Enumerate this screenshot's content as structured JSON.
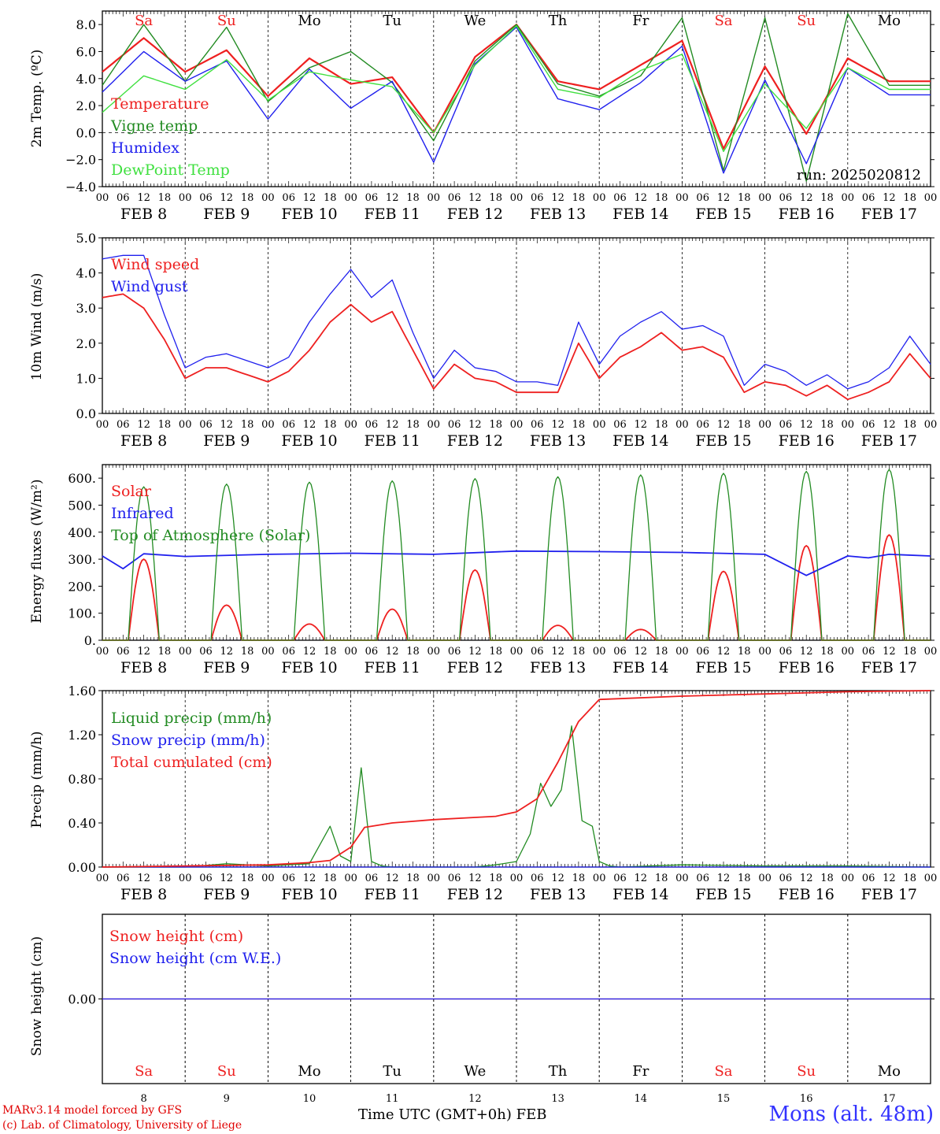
{
  "chart_data": [
    {
      "type": "line",
      "ylabel": "2m Temp. (ºC)",
      "ylim": [
        -4,
        9
      ],
      "yticks": [
        "8.0",
        "6.0",
        "4.0",
        "2.0",
        "0.0",
        "−2.0",
        "−4.0"
      ],
      "ytick_values": [
        8,
        6,
        4,
        2,
        0,
        -2,
        -4
      ],
      "zero_line": 0,
      "annotation": "run: 2025020812",
      "x_hours": [
        0,
        12,
        24,
        36,
        48,
        60,
        72,
        84,
        96,
        108,
        120,
        132,
        144,
        156,
        168,
        180,
        192,
        204,
        216,
        228,
        240
      ],
      "series": [
        {
          "name": "Temperature",
          "color": "#ee2020",
          "width": 2.2,
          "values": [
            4.5,
            7.0,
            4.5,
            6.1,
            2.7,
            5.5,
            3.6,
            4.1,
            0.0,
            5.6,
            8.0,
            3.8,
            3.2,
            5.0,
            6.8,
            -1.2,
            4.9,
            -0.1,
            5.5,
            3.8,
            3.8
          ]
        },
        {
          "name": "Vigne temp",
          "color": "#228b22",
          "width": 1.4,
          "values": [
            3.5,
            8.0,
            3.8,
            7.8,
            2.3,
            4.8,
            6.0,
            3.7,
            -0.6,
            5.3,
            8.0,
            3.6,
            2.7,
            4.2,
            8.5,
            -2.8,
            8.5,
            -3.6,
            8.8,
            3.5,
            3.5
          ]
        },
        {
          "name": "Humidex",
          "color": "#2020ee",
          "width": 1.4,
          "values": [
            3.0,
            6.0,
            3.8,
            5.3,
            1.0,
            4.7,
            1.8,
            3.8,
            -2.2,
            5.1,
            7.8,
            2.5,
            1.7,
            3.7,
            6.4,
            -3.0,
            3.9,
            -2.3,
            4.8,
            2.8,
            2.8
          ]
        },
        {
          "name": "DewPoint Temp",
          "color": "#40e040",
          "width": 1.4,
          "values": [
            1.5,
            4.2,
            3.2,
            5.4,
            2.4,
            4.5,
            3.9,
            3.4,
            0.0,
            5.0,
            7.9,
            3.2,
            2.6,
            4.6,
            5.8,
            -1.4,
            3.6,
            0.3,
            4.8,
            3.2,
            3.2
          ]
        }
      ]
    },
    {
      "type": "line",
      "ylabel": "10m Wind (m/s)",
      "ylim": [
        0,
        5
      ],
      "yticks": [
        "5.0",
        "4.0",
        "3.0",
        "2.0",
        "1.0",
        "0.0"
      ],
      "ytick_values": [
        5,
        4,
        3,
        2,
        1,
        0
      ],
      "x_hours": [
        0,
        6,
        12,
        18,
        24,
        30,
        36,
        42,
        48,
        54,
        60,
        66,
        72,
        78,
        84,
        90,
        96,
        102,
        108,
        114,
        120,
        126,
        132,
        138,
        144,
        150,
        156,
        162,
        168,
        174,
        180,
        186,
        192,
        198,
        204,
        210,
        216,
        222,
        228,
        234,
        240
      ],
      "series": [
        {
          "name": "Wind speed",
          "color": "#ee2020",
          "width": 1.8,
          "values": [
            3.3,
            3.4,
            3.0,
            2.1,
            1.0,
            1.3,
            1.3,
            1.1,
            0.9,
            1.2,
            1.8,
            2.6,
            3.1,
            2.6,
            2.9,
            1.8,
            0.7,
            1.4,
            1.0,
            0.9,
            0.6,
            0.6,
            0.6,
            2.0,
            1.0,
            1.6,
            1.9,
            2.3,
            1.8,
            1.9,
            1.6,
            0.6,
            0.9,
            0.8,
            0.5,
            0.8,
            0.4,
            0.6,
            0.9,
            1.7,
            1.0
          ]
        },
        {
          "name": "Wind gust",
          "color": "#2020ee",
          "width": 1.3,
          "values": [
            4.4,
            4.5,
            4.5,
            2.8,
            1.3,
            1.6,
            1.7,
            1.5,
            1.3,
            1.6,
            2.6,
            3.4,
            4.1,
            3.3,
            3.8,
            2.3,
            1.0,
            1.8,
            1.3,
            1.2,
            0.9,
            0.9,
            0.8,
            2.6,
            1.4,
            2.2,
            2.6,
            2.9,
            2.4,
            2.5,
            2.2,
            0.8,
            1.4,
            1.2,
            0.8,
            1.1,
            0.7,
            0.9,
            1.3,
            2.2,
            1.4
          ]
        }
      ]
    },
    {
      "type": "line",
      "ylabel": "Energy fluxes (W/m²)",
      "ylim": [
        0,
        650
      ],
      "yticks": [
        "600.",
        "500.",
        "400.",
        "300.",
        "200.",
        "100.",
        "0."
      ],
      "ytick_values": [
        600,
        500,
        400,
        300,
        200,
        100,
        0
      ],
      "diurnal": true,
      "series": [
        {
          "name": "Solar",
          "color": "#ee2020",
          "width": 1.8,
          "peaks": [
            300,
            130,
            60,
            115,
            260,
            55,
            40,
            255,
            350,
            390
          ]
        },
        {
          "name": "Infrared",
          "color": "#2020ee",
          "width": 1.8,
          "x_hours": [
            0,
            6,
            12,
            24,
            48,
            72,
            96,
            120,
            144,
            168,
            192,
            204,
            216,
            222,
            228,
            240
          ],
          "values": [
            312,
            265,
            320,
            310,
            318,
            322,
            318,
            330,
            328,
            325,
            318,
            240,
            312,
            305,
            318,
            312
          ]
        },
        {
          "name": "Top of Atmosphere (Solar)",
          "color": "#228b22",
          "width": 1.3,
          "peaks": [
            568,
            578,
            585,
            590,
            598,
            605,
            612,
            618,
            625,
            632
          ]
        }
      ]
    },
    {
      "type": "line",
      "ylabel": "Precip (mm/h)",
      "ylim": [
        0,
        1.6
      ],
      "yticks": [
        "1.60",
        "1.20",
        "0.80",
        "0.40",
        "0.00"
      ],
      "ytick_values": [
        1.6,
        1.2,
        0.8,
        0.4,
        0
      ],
      "series": [
        {
          "name": "Liquid precip (mm/h)",
          "color": "#228b22",
          "width": 1.3,
          "x_hours": [
            0,
            24,
            36,
            48,
            60,
            66,
            69,
            72,
            75,
            78,
            81,
            84,
            96,
            108,
            114,
            120,
            124,
            127,
            130,
            133,
            136,
            139,
            142,
            144,
            147,
            150,
            168,
            192,
            216,
            240
          ],
          "values": [
            0,
            0,
            0.03,
            0.01,
            0.03,
            0.37,
            0.1,
            0.05,
            0.9,
            0.05,
            0.01,
            0,
            0,
            0,
            0.02,
            0.05,
            0.3,
            0.76,
            0.55,
            0.7,
            1.28,
            0.42,
            0.37,
            0.05,
            0.01,
            0,
            0.02,
            0.01,
            0.01,
            0
          ]
        },
        {
          "name": "Snow precip (mm/h)",
          "color": "#2020ee",
          "width": 1.3,
          "x_hours": [
            0,
            240
          ],
          "values": [
            0,
            0
          ]
        },
        {
          "name": "Total cumulated (cm)",
          "color": "#ee2020",
          "width": 1.8,
          "x_hours": [
            0,
            24,
            48,
            60,
            66,
            72,
            76,
            84,
            96,
            108,
            114,
            120,
            126,
            132,
            138,
            144,
            168,
            192,
            216,
            240
          ],
          "values": [
            0,
            0.01,
            0.02,
            0.04,
            0.06,
            0.18,
            0.36,
            0.4,
            0.43,
            0.45,
            0.46,
            0.5,
            0.62,
            0.95,
            1.32,
            1.52,
            1.55,
            1.57,
            1.59,
            1.6
          ]
        }
      ]
    },
    {
      "type": "line",
      "ylabel": "Snow height (cm)",
      "ylim": [
        -1,
        1
      ],
      "yticks": [
        "0.00"
      ],
      "ytick_values": [
        0
      ],
      "series": [
        {
          "name": "Snow height (cm)",
          "color": "#ee2020",
          "width": 1.3,
          "x_hours": [
            0,
            240
          ],
          "values": [
            0,
            0
          ]
        },
        {
          "name": "Snow height (cm W.E.)",
          "color": "#2020ee",
          "width": 1.3,
          "x_hours": [
            0,
            240
          ],
          "values": [
            0,
            0
          ]
        }
      ]
    }
  ],
  "x_axis": {
    "hour_labels": [
      "00",
      "06",
      "12",
      "18"
    ],
    "day_labels": [
      "FEB  8",
      "FEB  9",
      "FEB 10",
      "FEB 11",
      "FEB 12",
      "FEB 13",
      "FEB 14",
      "FEB 15",
      "FEB 16",
      "FEB 17"
    ],
    "weekdays": [
      "Sa",
      "Su",
      "Mo",
      "Tu",
      "We",
      "Th",
      "Fr",
      "Sa",
      "Su",
      "Mo"
    ],
    "weekend_flags": [
      true,
      true,
      false,
      false,
      false,
      false,
      false,
      true,
      true,
      false
    ],
    "day_numbers": [
      "8",
      "9",
      "10",
      "11",
      "12",
      "13",
      "14",
      "15",
      "16",
      "17"
    ],
    "colors": {
      "weekend": "#ee2020",
      "weekday": "#000000"
    }
  },
  "footer": {
    "credit_line1": "MARv3.14 model forced by GFS",
    "credit_line2": "(c) Lab. of Climatology, University of Liege",
    "axis_title": "Time UTC (GMT+0h) FEB",
    "station": "Mons (alt. 48m)"
  }
}
